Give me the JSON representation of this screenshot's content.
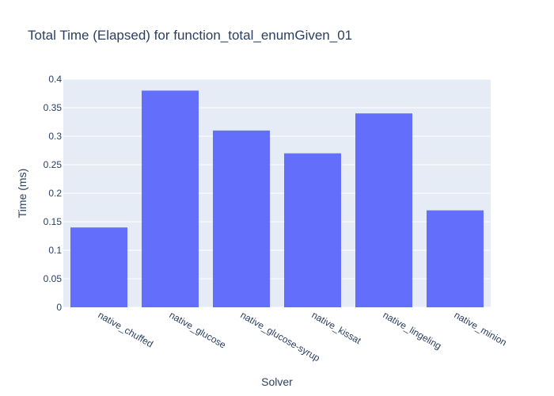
{
  "chart_data": {
    "type": "bar",
    "title": "Total Time (Elapsed) for function_total_enumGiven_01",
    "xlabel": "Solver",
    "ylabel": "Time (ms)",
    "categories": [
      "native_chuffed",
      "native_glucose",
      "native_glucose-syrup",
      "native_kissat",
      "native_lingeling",
      "native_minion"
    ],
    "values": [
      0.14,
      0.38,
      0.31,
      0.27,
      0.34,
      0.17
    ],
    "ylim": [
      0,
      0.4
    ],
    "yticks": [
      "0",
      "0.05",
      "0.1",
      "0.15",
      "0.2",
      "0.25",
      "0.3",
      "0.35",
      "0.4"
    ],
    "grid": true,
    "colors": {
      "bar": "#636efa",
      "plot_bg": "#e5ecf6",
      "grid": "#ffffff",
      "text": "#2a3f5f"
    }
  }
}
